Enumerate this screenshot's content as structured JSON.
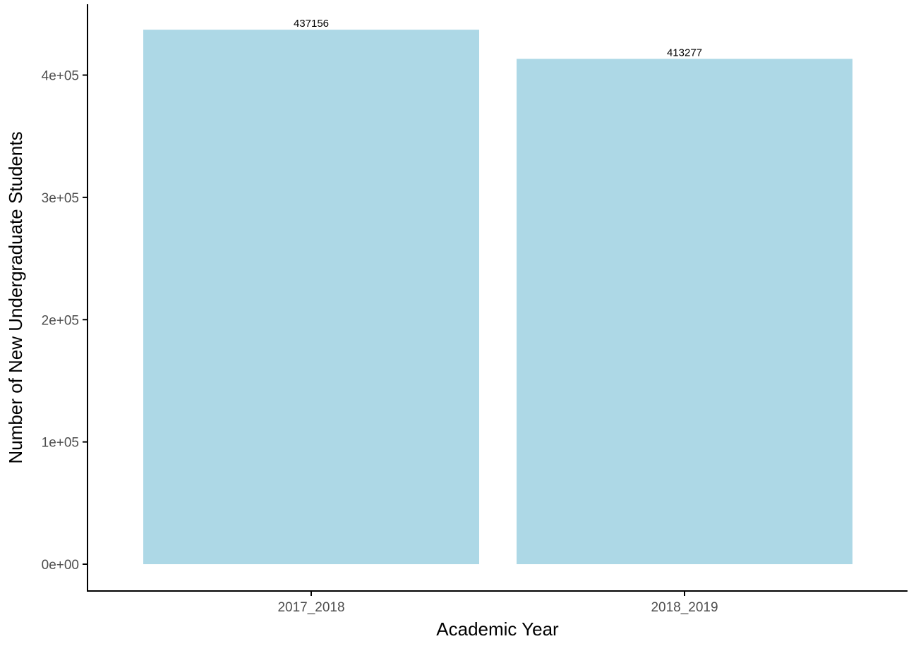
{
  "chart_data": {
    "type": "bar",
    "categories": [
      "2017_2018",
      "2018_2019"
    ],
    "values": [
      437156,
      413277
    ],
    "data_labels": [
      "437156",
      "413277"
    ],
    "xlabel": "Academic Year",
    "ylabel": "Number of New Undergraduate Students",
    "ylim": [
      0,
      450000
    ],
    "yticks": [
      0,
      100000,
      200000,
      300000,
      400000
    ],
    "ytick_labels": [
      "0e+00",
      "1e+05",
      "2e+05",
      "3e+05",
      "4e+05"
    ],
    "grid": false,
    "legend": "none",
    "bar_color": "#add8e6",
    "axis_color": "#000000",
    "tick_label_color": "#4d4d4d"
  }
}
